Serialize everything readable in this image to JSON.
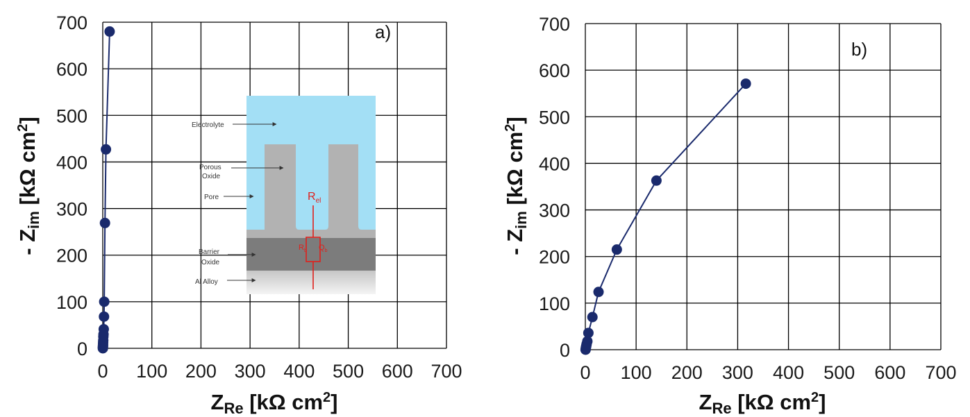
{
  "chart_data": [
    {
      "type": "line",
      "panel_label": "a)",
      "xlabel_main": "Z",
      "xlabel_sub": "Re",
      "xlabel_unit": " [kΩ cm",
      "xlabel_sup": "2",
      "xlabel_close": "]",
      "ylabel_main": "- Z",
      "ylabel_sub": "im",
      "ylabel_unit": " [kΩ cm",
      "ylabel_sup": "2",
      "ylabel_close": "]",
      "xlim": [
        0,
        700
      ],
      "ylim": [
        0,
        700
      ],
      "xticks": [
        0,
        100,
        200,
        300,
        400,
        500,
        600,
        700
      ],
      "yticks": [
        0,
        100,
        200,
        300,
        400,
        500,
        600,
        700
      ],
      "grid": true,
      "color": "#1a2a6c",
      "series": [
        {
          "x": [
            0.2,
            0.3,
            0.4,
            0.5,
            0.6,
            0.8,
            1.0,
            1.2,
            1.5,
            2.0,
            2.5,
            3.0,
            4.5,
            6.5,
            14
          ],
          "y": [
            0,
            2,
            4,
            6,
            9,
            13,
            17,
            25,
            30,
            41,
            68,
            100,
            269,
            427,
            680
          ]
        }
      ],
      "inset": {
        "labels": {
          "electrolyte": "Electrolyte",
          "porous_line1": "Porous",
          "porous_line2": "Oxide",
          "pore": "Pore",
          "barrier_line1": "Barrier",
          "barrier_line2": "Oxide",
          "alloy": "Al Alloy"
        },
        "r_el_main": "R",
        "r_el_sub": "el",
        "r_b_main": "R",
        "r_b_sub": "b",
        "q_b_main": "Q",
        "q_b_sub": "b",
        "colors": {
          "electrolyte": "#a3dff5",
          "porous": "#b2b2b2",
          "barrier": "#7c7c7c",
          "alloy_top": "#c6c6c6",
          "alloy_bottom": "#f4f4f4",
          "circuit": "#e0201b"
        }
      }
    },
    {
      "type": "line",
      "panel_label": "b)",
      "xlabel_main": "Z",
      "xlabel_sub": "Re",
      "xlabel_unit": " [kΩ cm",
      "xlabel_sup": "2",
      "xlabel_close": "]",
      "ylabel_main": "- Z",
      "ylabel_sub": "im",
      "ylabel_unit": " [kΩ cm",
      "ylabel_sup": "2",
      "ylabel_close": "]",
      "xlim": [
        0,
        700
      ],
      "ylim": [
        0,
        700
      ],
      "xticks": [
        0,
        100,
        200,
        300,
        400,
        500,
        600,
        700
      ],
      "yticks": [
        0,
        100,
        200,
        300,
        400,
        500,
        600,
        700
      ],
      "grid": true,
      "color": "#1a2a6c",
      "series": [
        {
          "x": [
            0.5,
            0.8,
            1.2,
            1.8,
            2.5,
            4,
            6,
            14,
            26,
            62,
            140,
            316
          ],
          "y": [
            0,
            2,
            5,
            8,
            12,
            18,
            36,
            70,
            124,
            215,
            363,
            571
          ]
        }
      ]
    }
  ]
}
